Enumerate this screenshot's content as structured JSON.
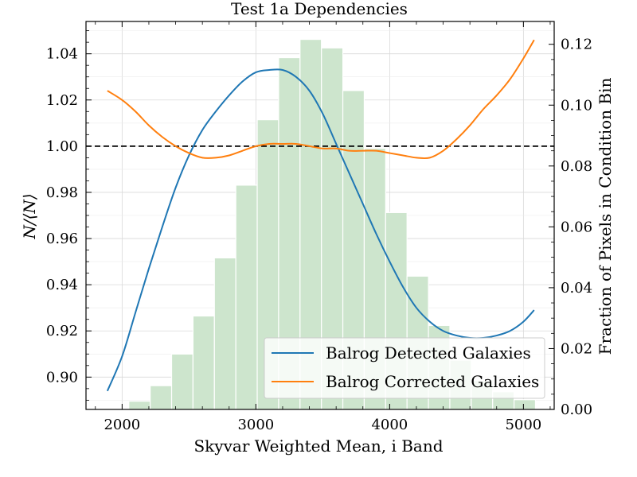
{
  "chart_data": {
    "type": "bar+line",
    "title": "Test 1a Dependencies",
    "xlabel": "Skyvar Weighted Mean, i Band",
    "ylabel_left": "N/⟨N⟩",
    "ylabel_right": "Fraction of Pixels in Condition Bin",
    "xlim": [
      1730,
      5230
    ],
    "ylim_left": [
      0.886,
      1.054
    ],
    "ylim_right": [
      0.0,
      0.1275
    ],
    "x_ticks": [
      2000,
      3000,
      4000,
      5000
    ],
    "y_left_ticks": [
      0.9,
      0.92,
      0.94,
      0.96,
      0.98,
      1.0,
      1.02,
      1.04
    ],
    "y_right_ticks": [
      0.0,
      0.02,
      0.04,
      0.06,
      0.08,
      0.1,
      0.12
    ],
    "reference_line": 1.0,
    "reference_line_style": "dashed",
    "grid": true,
    "legend_position": "lower-right",
    "histogram": {
      "color": "#cde5cd",
      "bins": [
        {
          "x0": 1890,
          "x1": 2050,
          "value": 0.0003
        },
        {
          "x0": 2050,
          "x1": 2210,
          "value": 0.0027
        },
        {
          "x0": 2210,
          "x1": 2370,
          "value": 0.0078
        },
        {
          "x0": 2370,
          "x1": 2530,
          "value": 0.0182
        },
        {
          "x0": 2530,
          "x1": 2690,
          "value": 0.0307
        },
        {
          "x0": 2690,
          "x1": 2850,
          "value": 0.0498
        },
        {
          "x0": 2850,
          "x1": 3010,
          "value": 0.0737
        },
        {
          "x0": 3010,
          "x1": 3170,
          "value": 0.0952
        },
        {
          "x0": 3170,
          "x1": 3330,
          "value": 0.1156
        },
        {
          "x0": 3330,
          "x1": 3490,
          "value": 0.1216
        },
        {
          "x0": 3490,
          "x1": 3650,
          "value": 0.1188
        },
        {
          "x0": 3650,
          "x1": 3810,
          "value": 0.1048
        },
        {
          "x0": 3810,
          "x1": 3970,
          "value": 0.0858
        },
        {
          "x0": 3970,
          "x1": 4130,
          "value": 0.0647
        },
        {
          "x0": 4130,
          "x1": 4290,
          "value": 0.0438
        },
        {
          "x0": 4290,
          "x1": 4450,
          "value": 0.0276
        },
        {
          "x0": 4450,
          "x1": 4610,
          "value": 0.0162
        },
        {
          "x0": 4610,
          "x1": 4770,
          "value": 0.0095
        },
        {
          "x0": 4770,
          "x1": 4930,
          "value": 0.0058
        },
        {
          "x0": 4930,
          "x1": 5090,
          "value": 0.0032
        }
      ]
    },
    "series": [
      {
        "name": "Balrog Detected Galaxies",
        "color": "#1f77b4",
        "x": [
          1890,
          2000,
          2100,
          2200,
          2300,
          2400,
          2500,
          2600,
          2700,
          2800,
          2900,
          3000,
          3100,
          3200,
          3300,
          3400,
          3500,
          3600,
          3700,
          3800,
          3900,
          4000,
          4100,
          4200,
          4300,
          4400,
          4500,
          4600,
          4700,
          4800,
          4900,
          5000,
          5080
        ],
        "values": [
          0.894,
          0.909,
          0.928,
          0.947,
          0.965,
          0.982,
          0.996,
          1.007,
          1.015,
          1.022,
          1.028,
          1.032,
          1.033,
          1.033,
          1.03,
          1.024,
          1.014,
          1.001,
          0.988,
          0.975,
          0.962,
          0.95,
          0.939,
          0.93,
          0.924,
          0.92,
          0.918,
          0.917,
          0.917,
          0.918,
          0.92,
          0.924,
          0.929
        ]
      },
      {
        "name": "Balrog Corrected Galaxies",
        "color": "#ff7f0e",
        "x": [
          1890,
          2000,
          2100,
          2200,
          2300,
          2400,
          2500,
          2600,
          2700,
          2800,
          2900,
          3000,
          3100,
          3200,
          3300,
          3400,
          3500,
          3600,
          3700,
          3800,
          3900,
          4000,
          4100,
          4200,
          4300,
          4400,
          4500,
          4600,
          4700,
          4800,
          4900,
          5000,
          5080
        ],
        "values": [
          1.024,
          1.02,
          1.015,
          1.009,
          1.004,
          1.0,
          0.997,
          0.995,
          0.995,
          0.996,
          0.998,
          1.0,
          1.001,
          1.001,
          1.001,
          1.0,
          0.999,
          0.999,
          0.998,
          0.998,
          0.998,
          0.997,
          0.996,
          0.995,
          0.995,
          0.998,
          1.003,
          1.009,
          1.016,
          1.022,
          1.029,
          1.038,
          1.046
        ]
      }
    ]
  }
}
